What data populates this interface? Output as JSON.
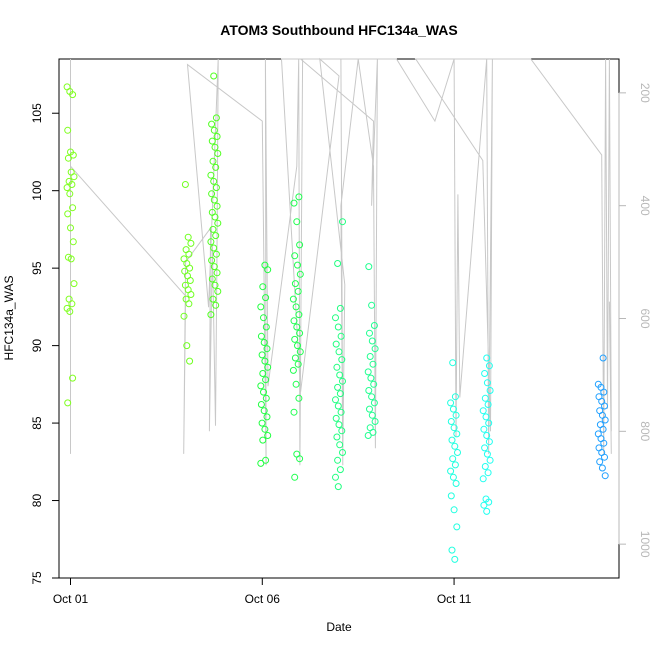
{
  "chart_data": {
    "type": "scatter",
    "title": "ATOM3 Southbound HFC134a_WAS",
    "xlabel": "Date",
    "ylabel": "HFC134a_WAS",
    "x_ticks": [
      "Oct 01",
      "Oct 06",
      "Oct 11"
    ],
    "x_tick_days": [
      1,
      6,
      11
    ],
    "xlim": [
      0.7,
      15.3
    ],
    "ylim": [
      75,
      108.5
    ],
    "y_ticks": [
      75,
      80,
      85,
      90,
      95,
      100,
      105
    ],
    "y2_label": "",
    "y2_lim": [
      1060,
      140
    ],
    "y2_ticks": [
      200,
      400,
      600,
      800,
      1000
    ],
    "y2_color": "#b8b8b8",
    "marker": "open-circle",
    "groups": [
      {
        "day": 1.0,
        "color": "#80ff20",
        "values": [
          106.7,
          106.4,
          106.2,
          103.9,
          102.5,
          102.3,
          102.1,
          101.2,
          100.9,
          100.6,
          100.4,
          100.2,
          99.8,
          98.9,
          98.5,
          97.6,
          96.7,
          95.7,
          95.6,
          94.0,
          93.0,
          92.7,
          92.4,
          92.2,
          87.9,
          86.3
        ]
      },
      {
        "day": 4.05,
        "color": "#70ff20",
        "values": [
          100.4,
          97.0,
          96.6,
          96.2,
          95.9,
          95.6,
          95.3,
          95.0,
          94.8,
          94.5,
          94.2,
          93.9,
          93.6,
          93.3,
          93.0,
          92.7,
          91.9,
          90.0,
          89.0
        ]
      },
      {
        "day": 4.75,
        "color": "#50ff20",
        "values": [
          107.4,
          104.7,
          104.3,
          103.9,
          103.5,
          103.2,
          102.8,
          102.4,
          101.9,
          101.5,
          101.0,
          100.6,
          100.2,
          99.8,
          99.4,
          99.0,
          98.6,
          98.3,
          97.9,
          97.5,
          97.1,
          96.7,
          96.3,
          95.9,
          95.5,
          95.1,
          94.7,
          94.3,
          93.9,
          93.5,
          93.0,
          92.6,
          92.0
        ]
      },
      {
        "day": 6.05,
        "color": "#20ff40",
        "values": [
          95.2,
          94.9,
          93.8,
          93.1,
          92.5,
          91.8,
          91.2,
          90.6,
          90.2,
          89.8,
          89.4,
          89.0,
          88.6,
          88.2,
          87.8,
          87.4,
          87.0,
          86.6,
          86.2,
          85.8,
          85.4,
          85.0,
          84.6,
          84.2,
          83.9,
          82.6,
          82.4
        ]
      },
      {
        "day": 6.9,
        "color": "#20ff50",
        "values": [
          99.6,
          99.2,
          98.0,
          96.5,
          95.8,
          95.2,
          94.6,
          94.0,
          93.5,
          93.0,
          92.5,
          92.0,
          91.6,
          91.2,
          90.8,
          90.4,
          90.0,
          89.6,
          89.2,
          88.8,
          88.4,
          87.5,
          86.6,
          85.7,
          83.0,
          82.7,
          81.5
        ]
      },
      {
        "day": 8.0,
        "color": "#20ff80",
        "values": [
          98.0,
          95.3,
          92.4,
          91.8,
          91.2,
          90.6,
          90.1,
          89.6,
          89.1,
          88.6,
          88.1,
          87.7,
          87.3,
          86.9,
          86.5,
          86.1,
          85.7,
          85.3,
          84.9,
          84.5,
          84.1,
          83.6,
          83.1,
          82.6,
          82.0,
          81.5,
          80.9
        ]
      },
      {
        "day": 8.85,
        "color": "#20ff90",
        "values": [
          95.1,
          92.6,
          91.3,
          90.8,
          90.3,
          89.8,
          89.3,
          88.8,
          88.3,
          87.9,
          87.5,
          87.1,
          86.7,
          86.3,
          85.9,
          85.5,
          85.1,
          84.7,
          84.4,
          84.2
        ]
      },
      {
        "day": 11.0,
        "color": "#20ffe0",
        "values": [
          88.9,
          86.7,
          86.3,
          85.9,
          85.5,
          85.1,
          84.7,
          84.3,
          83.9,
          83.5,
          83.1,
          82.7,
          82.3,
          81.9,
          81.5,
          81.1,
          80.3,
          79.4,
          78.3,
          76.8,
          76.2
        ]
      },
      {
        "day": 11.85,
        "color": "#20fff0",
        "values": [
          89.2,
          88.7,
          88.2,
          87.6,
          87.1,
          86.6,
          86.2,
          85.8,
          85.4,
          85.0,
          84.6,
          84.2,
          83.8,
          83.4,
          83.0,
          82.6,
          82.2,
          81.8,
          81.4,
          80.1,
          79.9,
          79.7,
          79.3
        ]
      },
      {
        "day": 14.85,
        "color": "#20a0ff",
        "values": [
          89.2,
          87.5,
          87.3,
          87.0,
          86.7,
          86.4,
          86.1,
          85.8,
          85.5,
          85.2,
          84.9,
          84.6,
          84.3,
          84.0,
          83.7,
          83.4,
          83.1,
          82.8,
          82.5,
          82.1,
          81.6
        ]
      }
    ],
    "pressure_series": {
      "color": "#c8c8c8",
      "path": [
        [
          1.0,
          140
        ],
        [
          1.0,
          840
        ],
        [
          1.0,
          330
        ],
        [
          4.0,
          560
        ],
        [
          3.95,
          840
        ],
        [
          4.0,
          500
        ],
        [
          4.65,
          440
        ],
        [
          4.62,
          800
        ],
        [
          4.7,
          470
        ],
        [
          4.78,
          790
        ],
        [
          4.82,
          480
        ],
        [
          4.85,
          140
        ],
        [
          4.6,
          580
        ],
        [
          4.05,
          150
        ],
        [
          6.0,
          250
        ],
        [
          6.1,
          860
        ],
        [
          6.08,
          140
        ],
        [
          6.15,
          720
        ],
        [
          6.9,
          330
        ],
        [
          6.95,
          140
        ],
        [
          6.98,
          860
        ],
        [
          7.05,
          140
        ],
        [
          6.5,
          140
        ],
        [
          7.0,
          730
        ],
        [
          8.0,
          170
        ],
        [
          7.5,
          140
        ],
        [
          8.15,
          540
        ],
        [
          8.1,
          840
        ],
        [
          8.05,
          140
        ],
        [
          8.1,
          860
        ],
        [
          8.05,
          400
        ],
        [
          8.5,
          140
        ],
        [
          8.9,
          330
        ],
        [
          8.95,
          830
        ],
        [
          9.0,
          140
        ],
        [
          8.85,
          400
        ],
        [
          8.9,
          250
        ],
        [
          7.0,
          140
        ],
        [
          9.5,
          140
        ],
        [
          10.5,
          250
        ],
        [
          11.0,
          140
        ],
        [
          11.05,
          810
        ],
        [
          11.1,
          380
        ],
        [
          11.15,
          740
        ],
        [
          11.85,
          130
        ],
        [
          11.9,
          840
        ],
        [
          12.0,
          130
        ],
        [
          11.95,
          800
        ],
        [
          11.75,
          320
        ],
        [
          10.0,
          140
        ],
        [
          13.0,
          140
        ],
        [
          14.85,
          310
        ],
        [
          14.9,
          840
        ],
        [
          14.95,
          140
        ],
        [
          15.0,
          760
        ],
        [
          15.05,
          140
        ],
        [
          15.1,
          800
        ],
        [
          15.05,
          570
        ],
        [
          15.1,
          840
        ]
      ]
    }
  }
}
